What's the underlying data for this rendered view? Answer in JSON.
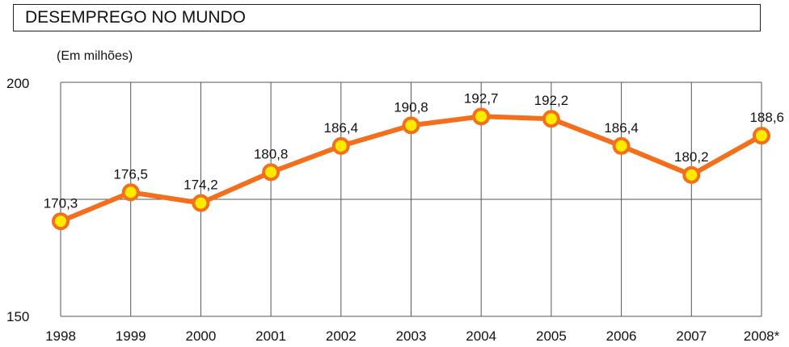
{
  "chart_data": {
    "type": "line",
    "title": "DESEMPREGO NO MUNDO",
    "subtitle": "(Em milhões)",
    "categories": [
      "1998",
      "1999",
      "2000",
      "2001",
      "2002",
      "2003",
      "2004",
      "2005",
      "2006",
      "2007",
      "2008*"
    ],
    "values": [
      170.3,
      176.5,
      174.2,
      180.8,
      186.4,
      190.8,
      192.7,
      192.2,
      186.4,
      180.2,
      188.6
    ],
    "data_labels": [
      "170,3",
      "176,5",
      "174,2",
      "180,8",
      "186,4",
      "190,8",
      "192,7",
      "192,2",
      "186,4",
      "180,2",
      "188,6"
    ],
    "ylim": [
      150,
      200
    ],
    "yticks": [
      "150",
      "200"
    ],
    "grid": true,
    "colors": {
      "line": "#f36f1c",
      "marker_fill": "#ffea00",
      "grid": "#555555"
    }
  }
}
